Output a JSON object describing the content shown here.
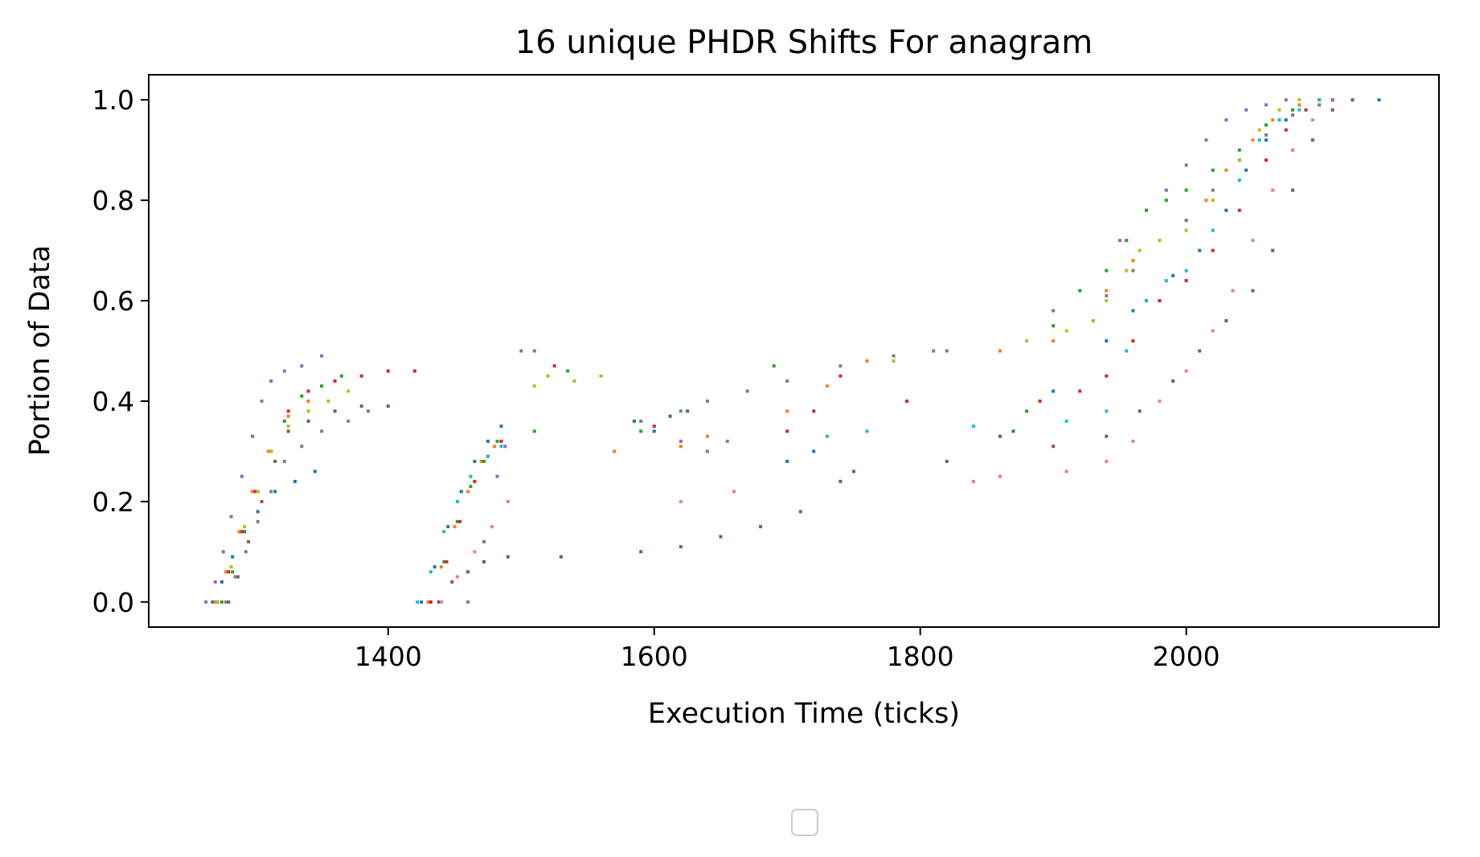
{
  "chart_data": {
    "type": "scatter",
    "title": "16 unique PHDR Shifts For anagram",
    "xlabel": "Execution Time (ticks)",
    "ylabel": "Portion of Data",
    "xlim": [
      1220,
      2190
    ],
    "ylim": [
      -0.05,
      1.05
    ],
    "x_ticks": [
      1400,
      1600,
      1800,
      2000
    ],
    "x_tick_labels": [
      "1400",
      "1600",
      "1800",
      "2000"
    ],
    "y_ticks": [
      0.0,
      0.2,
      0.4,
      0.6,
      0.8,
      1.0
    ],
    "y_tick_labels": [
      "0.0",
      "0.2",
      "0.4",
      "0.6",
      "0.8",
      "1.0"
    ],
    "grid": false,
    "legend": {
      "placement": "below plot, centered",
      "entries": []
    },
    "series": [
      {
        "color": "#9467bd",
        "points": [
          [
            1263,
            0.0
          ],
          [
            1270,
            0.04
          ],
          [
            1276,
            0.1
          ],
          [
            1282,
            0.17
          ],
          [
            1290,
            0.25
          ],
          [
            1298,
            0.33
          ],
          [
            1305,
            0.4
          ],
          [
            1312,
            0.44
          ],
          [
            1322,
            0.46
          ],
          [
            1335,
            0.47
          ],
          [
            1350,
            0.49
          ],
          [
            1460,
            0.0
          ],
          [
            1472,
            0.12
          ],
          [
            1482,
            0.25
          ],
          [
            1488,
            0.31
          ],
          [
            1500,
            0.5
          ],
          [
            1510,
            0.5
          ],
          [
            1620,
            0.32
          ],
          [
            1640,
            0.3
          ],
          [
            1655,
            0.32
          ],
          [
            1900,
            0.58
          ],
          [
            1950,
            0.72
          ],
          [
            1985,
            0.82
          ],
          [
            2000,
            0.87
          ],
          [
            2015,
            0.92
          ],
          [
            2030,
            0.96
          ],
          [
            2045,
            0.98
          ],
          [
            2060,
            0.99
          ],
          [
            2075,
            1.0
          ]
        ]
      },
      {
        "color": "#1f77b4",
        "points": [
          [
            1268,
            0.0
          ],
          [
            1275,
            0.04
          ],
          [
            1283,
            0.09
          ],
          [
            1292,
            0.14
          ],
          [
            1302,
            0.18
          ],
          [
            1315,
            0.22
          ],
          [
            1330,
            0.24
          ],
          [
            1345,
            0.26
          ],
          [
            1425,
            0.0
          ],
          [
            1435,
            0.07
          ],
          [
            1445,
            0.15
          ],
          [
            1455,
            0.22
          ],
          [
            1465,
            0.28
          ],
          [
            1475,
            0.32
          ],
          [
            1485,
            0.35
          ],
          [
            1585,
            0.36
          ],
          [
            1600,
            0.34
          ],
          [
            1612,
            0.37
          ],
          [
            1625,
            0.38
          ],
          [
            1700,
            0.28
          ],
          [
            1720,
            0.3
          ],
          [
            1870,
            0.34
          ],
          [
            1900,
            0.42
          ],
          [
            1940,
            0.52
          ],
          [
            1960,
            0.58
          ],
          [
            1990,
            0.65
          ],
          [
            2010,
            0.7
          ],
          [
            2030,
            0.78
          ],
          [
            2045,
            0.86
          ],
          [
            2060,
            0.92
          ],
          [
            2075,
            0.96
          ],
          [
            2100,
            0.99
          ],
          [
            2145,
            1.0
          ]
        ]
      },
      {
        "color": "#ff7f0e",
        "points": [
          [
            1270,
            0.0
          ],
          [
            1278,
            0.06
          ],
          [
            1288,
            0.14
          ],
          [
            1298,
            0.22
          ],
          [
            1310,
            0.3
          ],
          [
            1325,
            0.37
          ],
          [
            1340,
            0.4
          ],
          [
            1430,
            0.0
          ],
          [
            1440,
            0.07
          ],
          [
            1450,
            0.15
          ],
          [
            1460,
            0.22
          ],
          [
            1470,
            0.28
          ],
          [
            1480,
            0.31
          ],
          [
            1570,
            0.3
          ],
          [
            1620,
            0.31
          ],
          [
            1640,
            0.33
          ],
          [
            1700,
            0.38
          ],
          [
            1730,
            0.43
          ],
          [
            1760,
            0.48
          ],
          [
            1860,
            0.5
          ],
          [
            1900,
            0.52
          ],
          [
            1930,
            0.56
          ],
          [
            1940,
            0.62
          ],
          [
            1960,
            0.68
          ],
          [
            1980,
            0.72
          ],
          [
            2000,
            0.76
          ],
          [
            2015,
            0.8
          ],
          [
            2030,
            0.86
          ],
          [
            2050,
            0.92
          ],
          [
            2065,
            0.96
          ],
          [
            2085,
            0.99
          ],
          [
            2110,
            1.0
          ]
        ]
      },
      {
        "color": "#2ca02c",
        "points": [
          [
            1275,
            0.0
          ],
          [
            1283,
            0.06
          ],
          [
            1292,
            0.14
          ],
          [
            1302,
            0.22
          ],
          [
            1312,
            0.3
          ],
          [
            1322,
            0.36
          ],
          [
            1335,
            0.41
          ],
          [
            1350,
            0.43
          ],
          [
            1365,
            0.45
          ],
          [
            1432,
            0.0
          ],
          [
            1442,
            0.08
          ],
          [
            1452,
            0.16
          ],
          [
            1462,
            0.23
          ],
          [
            1472,
            0.28
          ],
          [
            1482,
            0.32
          ],
          [
            1510,
            0.34
          ],
          [
            1535,
            0.46
          ],
          [
            1590,
            0.34
          ],
          [
            1690,
            0.47
          ],
          [
            1880,
            0.38
          ],
          [
            1900,
            0.55
          ],
          [
            1920,
            0.62
          ],
          [
            1940,
            0.66
          ],
          [
            1955,
            0.72
          ],
          [
            1970,
            0.78
          ],
          [
            1985,
            0.8
          ],
          [
            2000,
            0.82
          ],
          [
            2020,
            0.86
          ],
          [
            2040,
            0.9
          ],
          [
            2060,
            0.95
          ],
          [
            2080,
            0.98
          ],
          [
            2100,
            1.0
          ]
        ]
      },
      {
        "color": "#d62728",
        "points": [
          [
            1272,
            0.0
          ],
          [
            1280,
            0.06
          ],
          [
            1290,
            0.14
          ],
          [
            1300,
            0.22
          ],
          [
            1312,
            0.3
          ],
          [
            1325,
            0.38
          ],
          [
            1340,
            0.42
          ],
          [
            1360,
            0.44
          ],
          [
            1380,
            0.45
          ],
          [
            1400,
            0.46
          ],
          [
            1420,
            0.46
          ],
          [
            1432,
            0.0
          ],
          [
            1444,
            0.08
          ],
          [
            1454,
            0.16
          ],
          [
            1465,
            0.24
          ],
          [
            1475,
            0.29
          ],
          [
            1485,
            0.32
          ],
          [
            1525,
            0.47
          ],
          [
            1600,
            0.35
          ],
          [
            1700,
            0.34
          ],
          [
            1720,
            0.38
          ],
          [
            1740,
            0.45
          ],
          [
            1790,
            0.4
          ],
          [
            1890,
            0.4
          ],
          [
            1920,
            0.42
          ],
          [
            1940,
            0.45
          ],
          [
            1960,
            0.52
          ],
          [
            1980,
            0.6
          ],
          [
            2000,
            0.64
          ],
          [
            2020,
            0.7
          ],
          [
            2040,
            0.78
          ],
          [
            2060,
            0.88
          ],
          [
            2075,
            0.94
          ],
          [
            2090,
            0.98
          ],
          [
            2110,
            1.0
          ]
        ]
      },
      {
        "color": "#8c564b",
        "points": [
          [
            1280,
            0.0
          ],
          [
            1287,
            0.05
          ],
          [
            1295,
            0.12
          ],
          [
            1305,
            0.2
          ],
          [
            1315,
            0.28
          ],
          [
            1325,
            0.34
          ],
          [
            1340,
            0.36
          ],
          [
            1360,
            0.38
          ],
          [
            1380,
            0.39
          ],
          [
            1400,
            0.39
          ],
          [
            1438,
            0.0
          ],
          [
            1448,
            0.04
          ],
          [
            1460,
            0.06
          ],
          [
            1472,
            0.08
          ],
          [
            1490,
            0.09
          ],
          [
            1530,
            0.09
          ],
          [
            1590,
            0.1
          ],
          [
            1620,
            0.11
          ],
          [
            1650,
            0.13
          ],
          [
            1680,
            0.15
          ],
          [
            1710,
            0.18
          ],
          [
            1740,
            0.24
          ],
          [
            1750,
            0.26
          ],
          [
            1820,
            0.28
          ],
          [
            1860,
            0.33
          ],
          [
            1900,
            0.31
          ],
          [
            1940,
            0.33
          ],
          [
            1965,
            0.38
          ],
          [
            1990,
            0.44
          ],
          [
            2010,
            0.5
          ],
          [
            2030,
            0.56
          ],
          [
            2050,
            0.62
          ],
          [
            2065,
            0.7
          ],
          [
            2080,
            0.82
          ],
          [
            2095,
            0.92
          ],
          [
            2110,
            0.98
          ],
          [
            2125,
            1.0
          ]
        ]
      },
      {
        "color": "#e377c2",
        "points": [
          [
            1440,
            0.0
          ],
          [
            1452,
            0.05
          ],
          [
            1465,
            0.1
          ],
          [
            1478,
            0.15
          ],
          [
            1490,
            0.2
          ],
          [
            1620,
            0.2
          ],
          [
            1660,
            0.22
          ],
          [
            1840,
            0.24
          ],
          [
            1860,
            0.25
          ],
          [
            1910,
            0.26
          ],
          [
            1940,
            0.28
          ],
          [
            1960,
            0.32
          ],
          [
            1980,
            0.4
          ],
          [
            2000,
            0.46
          ],
          [
            2020,
            0.54
          ],
          [
            2035,
            0.62
          ],
          [
            2050,
            0.72
          ],
          [
            2065,
            0.82
          ],
          [
            2080,
            0.9
          ],
          [
            2095,
            0.96
          ],
          [
            2110,
            1.0
          ]
        ]
      },
      {
        "color": "#7f7f7f",
        "points": [
          [
            1278,
            0.0
          ],
          [
            1285,
            0.05
          ],
          [
            1293,
            0.1
          ],
          [
            1302,
            0.16
          ],
          [
            1312,
            0.22
          ],
          [
            1322,
            0.28
          ],
          [
            1335,
            0.31
          ],
          [
            1350,
            0.34
          ],
          [
            1370,
            0.36
          ],
          [
            1385,
            0.38
          ],
          [
            1590,
            0.36
          ],
          [
            1620,
            0.38
          ],
          [
            1640,
            0.4
          ],
          [
            1670,
            0.42
          ],
          [
            1700,
            0.44
          ],
          [
            1740,
            0.47
          ],
          [
            1780,
            0.49
          ],
          [
            1810,
            0.5
          ],
          [
            1820,
            0.5
          ],
          [
            1940,
            0.61
          ],
          [
            1960,
            0.66
          ],
          [
            1980,
            0.72
          ],
          [
            2000,
            0.76
          ],
          [
            2020,
            0.82
          ],
          [
            2040,
            0.88
          ],
          [
            2060,
            0.93
          ],
          [
            2080,
            0.97
          ],
          [
            2100,
            0.99
          ],
          [
            2110,
            1.0
          ]
        ]
      },
      {
        "color": "#bcbd22",
        "points": [
          [
            1272,
            0.0
          ],
          [
            1282,
            0.07
          ],
          [
            1292,
            0.15
          ],
          [
            1302,
            0.22
          ],
          [
            1312,
            0.3
          ],
          [
            1325,
            0.35
          ],
          [
            1340,
            0.38
          ],
          [
            1355,
            0.4
          ],
          [
            1370,
            0.42
          ],
          [
            1510,
            0.43
          ],
          [
            1520,
            0.45
          ],
          [
            1540,
            0.44
          ],
          [
            1560,
            0.45
          ],
          [
            1780,
            0.48
          ],
          [
            1880,
            0.52
          ],
          [
            1910,
            0.54
          ],
          [
            1930,
            0.56
          ],
          [
            1940,
            0.6
          ],
          [
            1955,
            0.66
          ],
          [
            1965,
            0.7
          ],
          [
            1980,
            0.72
          ],
          [
            2000,
            0.74
          ],
          [
            2020,
            0.8
          ],
          [
            2040,
            0.88
          ],
          [
            2055,
            0.94
          ],
          [
            2070,
            0.98
          ],
          [
            2085,
            1.0
          ]
        ]
      },
      {
        "color": "#17becf",
        "points": [
          [
            1422,
            0.0
          ],
          [
            1432,
            0.06
          ],
          [
            1442,
            0.14
          ],
          [
            1452,
            0.2
          ],
          [
            1462,
            0.25
          ],
          [
            1475,
            0.29
          ],
          [
            1485,
            0.31
          ],
          [
            1730,
            0.33
          ],
          [
            1760,
            0.34
          ],
          [
            1840,
            0.35
          ],
          [
            1910,
            0.36
          ],
          [
            1940,
            0.38
          ],
          [
            1955,
            0.5
          ],
          [
            1970,
            0.6
          ],
          [
            1985,
            0.64
          ],
          [
            2000,
            0.66
          ],
          [
            2020,
            0.74
          ],
          [
            2040,
            0.84
          ],
          [
            2055,
            0.92
          ],
          [
            2070,
            0.96
          ],
          [
            2085,
            0.98
          ],
          [
            2100,
            1.0
          ]
        ]
      }
    ]
  }
}
